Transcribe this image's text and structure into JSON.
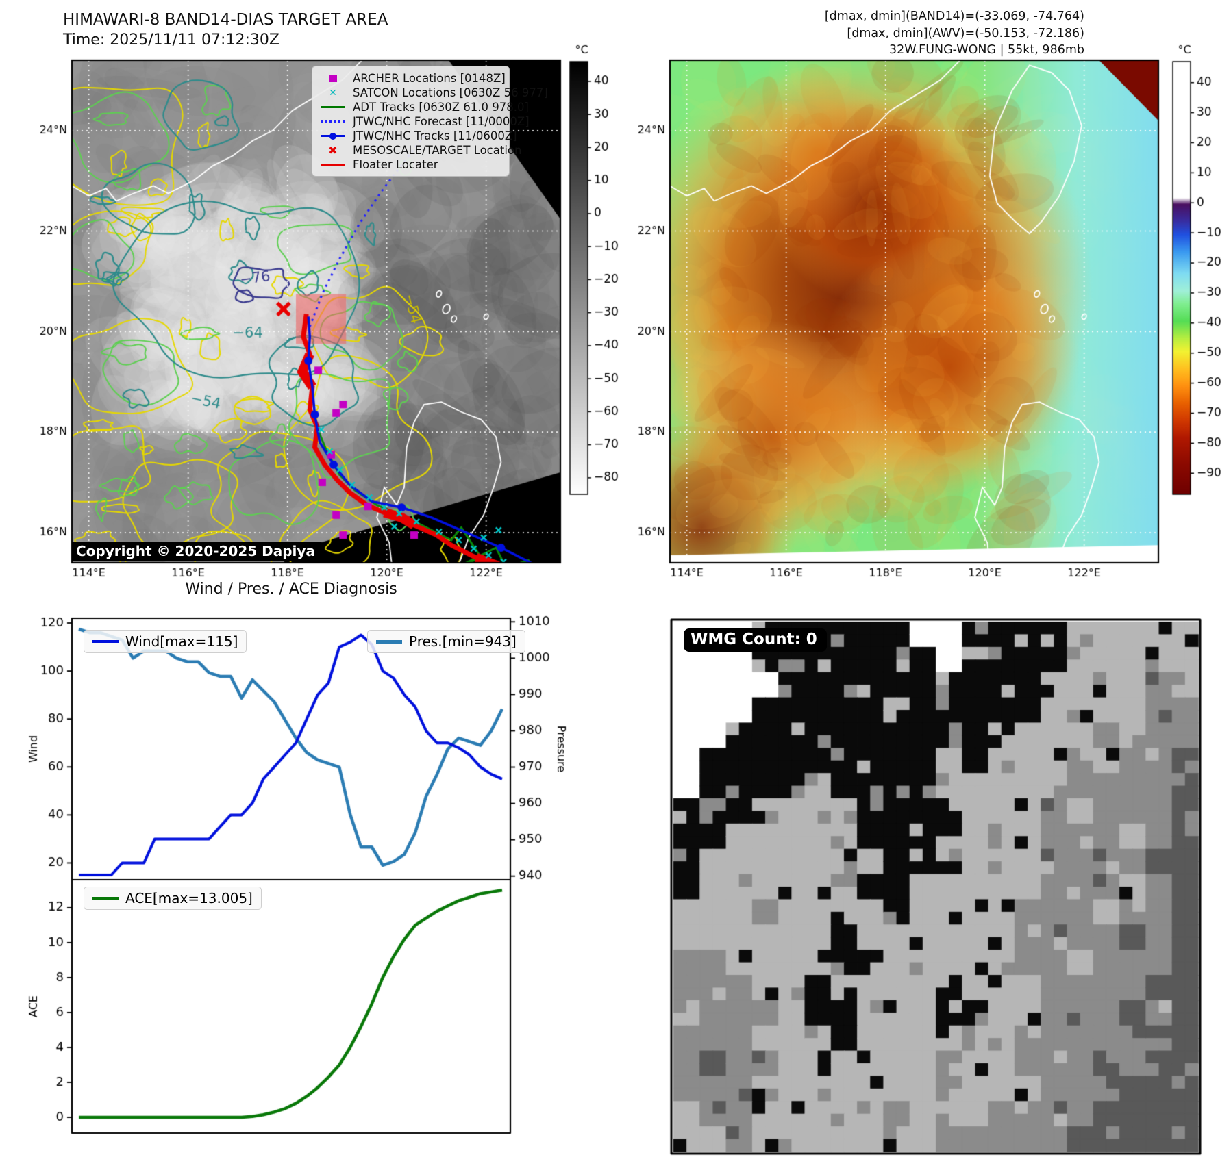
{
  "left_panel": {
    "title_line1": "HIMAWARI-8 BAND14-DIAS TARGET AREA",
    "title_line2": "Time: 2025/11/11 07:12:30Z",
    "copyright": "Copyright © 2020-2025 Dapiya",
    "legend": [
      {
        "name": "archer",
        "label": "ARCHER Locations [0148Z]",
        "color": "#c400c4"
      },
      {
        "name": "satcon",
        "label": "SATCON Locations [0630Z 56 977]",
        "color": "#00b8ba"
      },
      {
        "name": "adt",
        "label": "ADT Tracks [0630Z 61.0 978.0]",
        "color": "#007800"
      },
      {
        "name": "forecast",
        "label": "JTWC/NHC Forecast [11/0000Z]",
        "color": "#2222ff"
      },
      {
        "name": "tracks",
        "label": "JTWC/NHC Tracks [11/0600Z]",
        "color": "#0010e0"
      },
      {
        "name": "mesoscale",
        "label": "MESOSCALE/TARGET Location",
        "color": "#e60000"
      },
      {
        "name": "floater",
        "label": "Floater Locater",
        "color": "#e60000"
      }
    ],
    "x_ticks": [
      {
        "label": "114°E",
        "lon": 114
      },
      {
        "label": "116°E",
        "lon": 116
      },
      {
        "label": "118°E",
        "lon": 118
      },
      {
        "label": "120°E",
        "lon": 120
      },
      {
        "label": "122°E",
        "lon": 122
      }
    ],
    "y_ticks": [
      {
        "label": "16°N",
        "lat": 16
      },
      {
        "label": "18°N",
        "lat": 18
      },
      {
        "label": "20°N",
        "lat": 20
      },
      {
        "label": "22°N",
        "lat": 22
      },
      {
        "label": "24°N",
        "lat": 24
      }
    ],
    "colorbar": {
      "label": "°C",
      "ticks": [
        40,
        30,
        20,
        10,
        0,
        -10,
        -20,
        -30,
        -40,
        -50,
        -60,
        -70,
        -80
      ]
    },
    "contour_labels": [
      {
        "text": "−76",
        "lon": 117.35,
        "lat": 21.05,
        "color": "#3c3c8f",
        "rot": -8
      },
      {
        "text": "−64",
        "lon": 117.2,
        "lat": 19.95,
        "color": "#2e8b8b",
        "rot": 0
      },
      {
        "text": "−54",
        "lon": 116.35,
        "lat": 18.6,
        "color": "#2e8b8b",
        "rot": 12
      },
      {
        "text": "−54",
        "lon": 120.5,
        "lat": 20.45,
        "color": "#c9bb00",
        "rot": 75
      }
    ],
    "overlays": {
      "target_x": {
        "lon": 117.92,
        "lat": 20.45
      },
      "target_box": {
        "lon0": 118.17,
        "lat0": 19.76,
        "lon1": 119.18,
        "lat1": 20.75
      },
      "forecast_track": [
        [
          118.45,
          20.1
        ],
        [
          118.7,
          20.75
        ],
        [
          119.05,
          21.45
        ],
        [
          119.45,
          22.15
        ],
        [
          119.9,
          22.8
        ],
        [
          120.4,
          23.45
        ],
        [
          120.75,
          23.9
        ]
      ],
      "jtwc_track": [
        [
          118.42,
          20.3
        ],
        [
          118.45,
          19.9
        ],
        [
          118.42,
          19.42
        ],
        [
          118.5,
          18.9
        ],
        [
          118.55,
          18.35
        ],
        [
          118.65,
          17.8
        ],
        [
          118.93,
          17.35
        ],
        [
          119.25,
          16.95
        ],
        [
          119.7,
          16.62
        ],
        [
          120.3,
          16.5
        ],
        [
          120.9,
          16.3
        ],
        [
          121.6,
          16.0
        ],
        [
          122.3,
          15.7
        ],
        [
          123.0,
          15.35
        ]
      ],
      "jtwc_dot_indices": [
        2,
        4,
        6,
        9,
        12
      ],
      "floater_track": [
        [
          118.38,
          20.35
        ],
        [
          118.32,
          19.9
        ],
        [
          118.45,
          19.55
        ],
        [
          118.3,
          19.2
        ],
        [
          118.5,
          18.9
        ],
        [
          118.45,
          18.45
        ],
        [
          118.6,
          18.1
        ],
        [
          118.55,
          17.7
        ],
        [
          118.75,
          17.35
        ],
        [
          119.0,
          17.05
        ],
        [
          119.25,
          16.8
        ],
        [
          119.6,
          16.55
        ],
        [
          119.95,
          16.4
        ],
        [
          120.3,
          16.3
        ],
        [
          120.55,
          16.15
        ],
        [
          121.0,
          15.95
        ],
        [
          121.3,
          15.75
        ],
        [
          121.6,
          15.6
        ],
        [
          121.8,
          15.5
        ],
        [
          122.2,
          15.35
        ],
        [
          122.5,
          15.2
        ],
        [
          122.9,
          15.0
        ]
      ],
      "adt_track": [
        [
          118.55,
          18.2
        ],
        [
          118.8,
          17.6
        ],
        [
          119.05,
          17.15
        ],
        [
          119.35,
          16.85
        ],
        [
          119.8,
          16.55
        ],
        [
          120.3,
          16.35
        ],
        [
          120.8,
          16.1
        ],
        [
          121.3,
          15.85
        ],
        [
          121.5,
          16.1
        ],
        [
          121.9,
          15.5
        ],
        [
          121.5,
          15.35
        ],
        [
          122.2,
          15.7
        ],
        [
          122.4,
          15.3
        ],
        [
          122.85,
          15.45
        ],
        [
          123.1,
          15.1
        ]
      ],
      "archer_squares": [
        [
          118.62,
          19.23
        ],
        [
          119.12,
          18.55
        ],
        [
          118.98,
          18.38
        ],
        [
          118.88,
          17.55
        ],
        [
          118.7,
          17.0
        ],
        [
          118.98,
          16.35
        ],
        [
          119.62,
          16.52
        ],
        [
          119.12,
          15.95
        ],
        [
          120.55,
          15.95
        ],
        [
          121.9,
          15.12
        ],
        [
          118.4,
          15.05
        ]
      ],
      "satcon_x": [
        [
          118.68,
          18.05
        ],
        [
          118.85,
          17.62
        ],
        [
          119.05,
          17.25
        ],
        [
          119.3,
          16.95
        ],
        [
          119.65,
          16.7
        ],
        [
          119.95,
          16.5
        ],
        [
          120.25,
          16.38
        ],
        [
          120.6,
          16.22
        ],
        [
          121.05,
          16.02
        ],
        [
          121.45,
          15.85
        ],
        [
          121.75,
          15.68
        ],
        [
          122.05,
          15.55
        ],
        [
          122.35,
          15.42
        ],
        [
          121.95,
          15.9
        ],
        [
          122.25,
          16.05
        ],
        [
          120.15,
          16.12
        ],
        [
          122.6,
          15.3
        ],
        [
          122.85,
          15.2
        ]
      ]
    }
  },
  "right_panel": {
    "header_line1": "[dmax, dmin](BAND14)=(-33.069, -74.764)",
    "header_line2": "[dmax, dmin](AWV)=(-50.153, -72.186)",
    "header_line3": "32W.FUNG-WONG | 55kt, 986mb",
    "x_ticks": [
      {
        "label": "114°E",
        "lon": 114
      },
      {
        "label": "116°E",
        "lon": 116
      },
      {
        "label": "118°E",
        "lon": 118
      },
      {
        "label": "120°E",
        "lon": 120
      },
      {
        "label": "122°E",
        "lon": 122
      }
    ],
    "y_ticks": [
      {
        "label": "16°N",
        "lat": 16
      },
      {
        "label": "18°N",
        "lat": 18
      },
      {
        "label": "20°N",
        "lat": 20
      },
      {
        "label": "22°N",
        "lat": 22
      },
      {
        "label": "24°N",
        "lat": 24
      }
    ],
    "colorbar": {
      "label": "°C",
      "ticks": [
        40,
        30,
        20,
        10,
        0,
        -10,
        -20,
        -30,
        -40,
        -50,
        -60,
        -70,
        -80,
        -90
      ]
    }
  },
  "charts_panel": {
    "title": "Wind / Pres. / ACE Diagnosis",
    "wind_legend": "Wind[max=115]",
    "pres_legend": "Pres.[min=943]",
    "ace_legend": "ACE[max=13.005]",
    "wind_axis_label": "Wind",
    "pres_axis_label": "Pressure",
    "ace_axis_label": "ACE",
    "wind_color": "#0010dd",
    "pres_color": "#2b7cb3",
    "ace_color": "#087808"
  },
  "chart_data": [
    {
      "type": "line",
      "title": "Wind / Pres. / ACE Diagnosis",
      "x": [
        0,
        1,
        2,
        3,
        4,
        5,
        6,
        7,
        8,
        9,
        10,
        11,
        12,
        13,
        14,
        15,
        16,
        17,
        18,
        19,
        20,
        21,
        22,
        23,
        24,
        25,
        26,
        27,
        28,
        29,
        30,
        31,
        32,
        33,
        34,
        35,
        36,
        37,
        38,
        39
      ],
      "series": [
        {
          "name": "Wind[max=115]",
          "axis": "left",
          "values": [
            15,
            15,
            15,
            15,
            20,
            20,
            20,
            30,
            30,
            30,
            30,
            30,
            30,
            35,
            40,
            40,
            45,
            55,
            60,
            65,
            70,
            80,
            90,
            95,
            110,
            112,
            115,
            111,
            100,
            97,
            90,
            85,
            75,
            70,
            70,
            68,
            65,
            60,
            57,
            55
          ]
        },
        {
          "name": "Pres.[min=943]",
          "axis": "right",
          "values": [
            1008,
            1007,
            1007,
            1006,
            1005,
            1000,
            1002,
            1002,
            1002,
            1000,
            999,
            999,
            996,
            995,
            995,
            989,
            994,
            991,
            988,
            983,
            978,
            974,
            972,
            971,
            970,
            957,
            948,
            948,
            943,
            944,
            946,
            952,
            962,
            968,
            975,
            978,
            977,
            976,
            980,
            986
          ]
        }
      ],
      "ylabel": "Wind",
      "y2label": "Pressure",
      "ylim": [
        13,
        122
      ],
      "y2lim": [
        939,
        1011
      ],
      "yticks": [
        20,
        40,
        60,
        80,
        100,
        120
      ],
      "y2ticks": [
        940,
        950,
        960,
        970,
        980,
        990,
        1000,
        1010
      ],
      "legend_position": "upper left / upper right",
      "grid": false
    },
    {
      "type": "line",
      "x": [
        0,
        1,
        2,
        3,
        4,
        5,
        6,
        7,
        8,
        9,
        10,
        11,
        12,
        13,
        14,
        15,
        16,
        17,
        18,
        19,
        20,
        21,
        22,
        23,
        24,
        25,
        26,
        27,
        28,
        29,
        30,
        31,
        32,
        33,
        34,
        35,
        36,
        37,
        38,
        39
      ],
      "series": [
        {
          "name": "ACE[max=13.005]",
          "axis": "left",
          "values": [
            0,
            0,
            0,
            0,
            0,
            0,
            0,
            0,
            0,
            0,
            0,
            0,
            0,
            0,
            0,
            0,
            0.05,
            0.15,
            0.3,
            0.5,
            0.8,
            1.2,
            1.7,
            2.3,
            3.0,
            4.0,
            5.2,
            6.5,
            8.0,
            9.2,
            10.2,
            11.0,
            11.4,
            11.8,
            12.1,
            12.4,
            12.6,
            12.8,
            12.9,
            13.005
          ]
        }
      ],
      "ylabel": "ACE",
      "ylim": [
        -0.9,
        13.6
      ],
      "yticks": [
        0,
        2,
        4,
        6,
        8,
        10,
        12
      ],
      "legend_position": "upper left",
      "grid": false
    }
  ],
  "wmg_panel": {
    "label": "WMG Count: 0",
    "palette": {
      "W": "#ffffff",
      "K": "#0a0a0a",
      "L": "#b6b6b6",
      "G": "#8b8b8b",
      "D": "#595959"
    },
    "pattern": [
      "WWWKKKKKKWWKKKKLLLLL",
      "WWWKKKKKKKWKKKKLLLLL",
      "WWWWKKKKKKKKKKLLLLGL",
      "WWWKKKKKLKKKKKLLLLGG",
      "WWKKKKKKKKKKLLLLGLGG",
      "WKKKKKKKKKLKLLLGLGGD",
      "WKKKKLKKKKLLLLLGGGGD",
      "KKKLLLLKKKKLLLGLGGGD",
      "KKLLLLLKKKLLLLGGGLGD",
      "KLLLLLLLKKKLLLGGGGDD",
      "KLLLLLLKKLLLLLGGGLGD",
      "LLLGLLLLKLLLLGGGLGGD",
      "LLLLLLKLLLLLLGGGGDGD",
      "GGLLLLKKLLLLLGGLGGGD",
      "GGGLLKLLLLKLLLGGGGDD",
      "LGGGLKKLLLKKLLGGGDGD",
      "GGGLLLKLLLLLLGGGGGDD",
      "GDGGLLLLLLGLLGGGDGDD",
      "GGGLLLLLLLGLLLGGGDDD",
      "LGGLLLLLGLLLGGGGDDDD",
      "LLGLLLLLLLGGGGGDDDDD"
    ]
  }
}
